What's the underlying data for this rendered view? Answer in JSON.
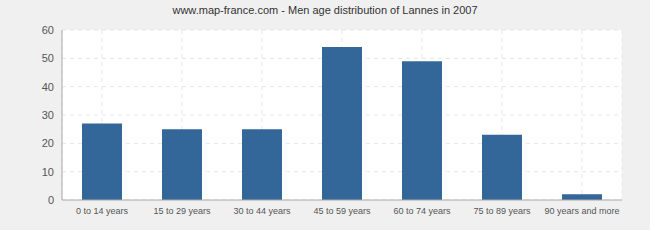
{
  "chart_data": {
    "type": "bar",
    "title": "www.map-france.com - Men age distribution of Lannes in 2007",
    "categories": [
      "0 to 14 years",
      "15 to 29 years",
      "30 to 44 years",
      "45 to 59 years",
      "60 to 74 years",
      "75 to 89 years",
      "90 years and more"
    ],
    "values": [
      27,
      25,
      25,
      54,
      49,
      23,
      2
    ],
    "color": "#336699",
    "ylim": [
      0,
      60
    ],
    "yticks": [
      0,
      10,
      20,
      30,
      40,
      50,
      60
    ],
    "grid": true
  }
}
